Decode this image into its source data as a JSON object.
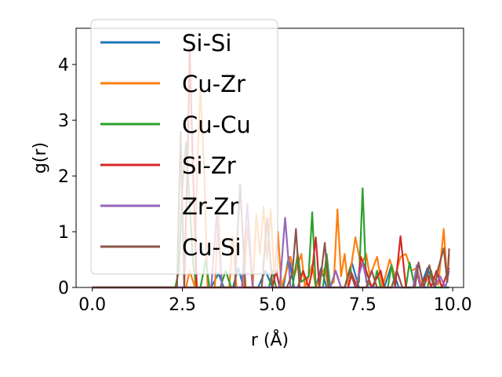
{
  "chart_data": {
    "type": "line",
    "xlabel": "r (Å)",
    "ylabel": "g(r)",
    "xlim": [
      -0.45,
      10.3
    ],
    "ylim": [
      0,
      4.65
    ],
    "x_ticks": [
      0.0,
      2.5,
      5.0,
      7.5,
      10.0
    ],
    "x_tick_labels": [
      "0.0",
      "2.5",
      "5.0",
      "7.5",
      "10.0"
    ],
    "y_ticks": [
      0,
      1,
      2,
      3,
      4
    ],
    "y_tick_labels": [
      "0",
      "1",
      "2",
      "3",
      "4"
    ],
    "grid": false,
    "legend_position": "upper-left",
    "series": [
      {
        "name": "Si-Si",
        "color": "#1f77b4",
        "points": [
          [
            0.0,
            0
          ],
          [
            3.3,
            0
          ],
          [
            3.5,
            0.25
          ],
          [
            3.65,
            0
          ],
          [
            3.9,
            0
          ],
          [
            4.05,
            0.35
          ],
          [
            4.2,
            0
          ],
          [
            4.6,
            0
          ],
          [
            4.8,
            0.3
          ],
          [
            5.0,
            0
          ],
          [
            5.3,
            0
          ],
          [
            5.45,
            0.55
          ],
          [
            5.6,
            0
          ],
          [
            6.2,
            0
          ],
          [
            6.35,
            0.35
          ],
          [
            6.5,
            0
          ],
          [
            7.0,
            0
          ],
          [
            7.2,
            0.45
          ],
          [
            7.4,
            0
          ],
          [
            8.1,
            0
          ],
          [
            8.3,
            0.4
          ],
          [
            8.5,
            0
          ],
          [
            9.1,
            0
          ],
          [
            9.3,
            0.35
          ],
          [
            9.5,
            0
          ],
          [
            9.9,
            0
          ]
        ]
      },
      {
        "name": "Cu-Zr",
        "color": "#ff7f0e",
        "points": [
          [
            0.0,
            0
          ],
          [
            2.6,
            0
          ],
          [
            2.7,
            0.3
          ],
          [
            2.85,
            0
          ],
          [
            2.9,
            2.0
          ],
          [
            3.0,
            3.55
          ],
          [
            3.1,
            2.2
          ],
          [
            3.2,
            0
          ],
          [
            3.4,
            0
          ],
          [
            3.5,
            1.3
          ],
          [
            3.6,
            0
          ],
          [
            3.8,
            0
          ],
          [
            3.9,
            0.9
          ],
          [
            4.0,
            0
          ],
          [
            4.2,
            0
          ],
          [
            4.3,
            1.1
          ],
          [
            4.45,
            0
          ],
          [
            4.55,
            1.3
          ],
          [
            4.65,
            0.6
          ],
          [
            4.75,
            1.45
          ],
          [
            4.85,
            0.5
          ],
          [
            4.95,
            1.4
          ],
          [
            5.05,
            0.2
          ],
          [
            5.15,
            1.0
          ],
          [
            5.25,
            0
          ],
          [
            5.5,
            0.55
          ],
          [
            5.6,
            0.2
          ],
          [
            5.8,
            0.6
          ],
          [
            5.9,
            0
          ],
          [
            6.1,
            0.4
          ],
          [
            6.2,
            0
          ],
          [
            6.45,
            0.35
          ],
          [
            6.55,
            0
          ],
          [
            6.7,
            0.1
          ],
          [
            6.8,
            1.4
          ],
          [
            6.9,
            0.2
          ],
          [
            7.0,
            0.6
          ],
          [
            7.1,
            0
          ],
          [
            7.3,
            0.9
          ],
          [
            7.45,
            0.4
          ],
          [
            7.6,
            0.6
          ],
          [
            7.7,
            0.2
          ],
          [
            7.9,
            0.55
          ],
          [
            8.05,
            0
          ],
          [
            8.25,
            0.5
          ],
          [
            8.4,
            0.2
          ],
          [
            8.55,
            0.55
          ],
          [
            8.7,
            0.6
          ],
          [
            8.85,
            0.3
          ],
          [
            9.0,
            0.35
          ],
          [
            9.15,
            0
          ],
          [
            9.3,
            0.15
          ],
          [
            9.45,
            0.2
          ],
          [
            9.6,
            0.05
          ],
          [
            9.75,
            1.05
          ],
          [
            9.85,
            0.1
          ],
          [
            9.9,
            0.6
          ]
        ]
      },
      {
        "name": "Cu-Cu",
        "color": "#2ca02c",
        "points": [
          [
            0.0,
            0
          ],
          [
            2.3,
            0
          ],
          [
            2.4,
            0.3
          ],
          [
            2.5,
            1.8
          ],
          [
            2.6,
            2.6
          ],
          [
            2.7,
            1.5
          ],
          [
            2.8,
            0.4
          ],
          [
            2.9,
            0
          ],
          [
            3.0,
            0
          ],
          [
            3.15,
            0.5
          ],
          [
            3.25,
            0
          ],
          [
            3.55,
            0
          ],
          [
            3.7,
            0.3
          ],
          [
            3.85,
            0
          ],
          [
            4.9,
            0
          ],
          [
            5.0,
            0.3
          ],
          [
            5.1,
            0
          ],
          [
            5.55,
            0
          ],
          [
            5.7,
            0.6
          ],
          [
            5.8,
            0.1
          ],
          [
            5.9,
            0.15
          ],
          [
            6.0,
            0.2
          ],
          [
            6.1,
            1.35
          ],
          [
            6.2,
            0
          ],
          [
            6.4,
            0
          ],
          [
            6.5,
            0.6
          ],
          [
            6.6,
            0
          ],
          [
            7.0,
            0
          ],
          [
            7.15,
            0.35
          ],
          [
            7.3,
            0
          ],
          [
            7.4,
            0.1
          ],
          [
            7.5,
            1.78
          ],
          [
            7.6,
            0.1
          ],
          [
            7.8,
            0
          ],
          [
            7.9,
            0.3
          ],
          [
            8.0,
            0
          ],
          [
            8.2,
            0
          ],
          [
            8.3,
            0.4
          ],
          [
            8.4,
            0
          ],
          [
            8.7,
            0
          ],
          [
            8.8,
            0.45
          ],
          [
            8.95,
            0
          ],
          [
            9.3,
            0
          ],
          [
            9.4,
            0.3
          ],
          [
            9.5,
            0
          ],
          [
            9.9,
            0
          ]
        ]
      },
      {
        "name": "Si-Zr",
        "color": "#d62728",
        "points": [
          [
            0.0,
            0
          ],
          [
            2.55,
            0
          ],
          [
            2.65,
            2.5
          ],
          [
            2.7,
            4.3
          ],
          [
            2.8,
            2.0
          ],
          [
            2.9,
            0
          ],
          [
            5.0,
            0
          ],
          [
            5.1,
            0.3
          ],
          [
            5.2,
            0
          ],
          [
            5.7,
            0
          ],
          [
            5.85,
            0.3
          ],
          [
            6.0,
            0
          ],
          [
            6.1,
            0.3
          ],
          [
            6.2,
            0.9
          ],
          [
            6.3,
            0
          ],
          [
            6.6,
            0
          ],
          [
            6.75,
            0.3
          ],
          [
            6.9,
            0
          ],
          [
            7.1,
            0
          ],
          [
            7.2,
            0.25
          ],
          [
            7.35,
            0
          ],
          [
            7.45,
            0.55
          ],
          [
            7.6,
            0.3
          ],
          [
            7.75,
            0
          ],
          [
            8.0,
            0.3
          ],
          [
            8.1,
            0
          ],
          [
            8.4,
            0
          ],
          [
            8.55,
            0.92
          ],
          [
            8.7,
            0
          ],
          [
            8.9,
            0
          ],
          [
            9.0,
            0.3
          ],
          [
            9.1,
            0
          ],
          [
            9.3,
            0.25
          ],
          [
            9.4,
            0
          ],
          [
            9.55,
            0.3
          ],
          [
            9.7,
            0
          ],
          [
            9.9,
            0.35
          ]
        ]
      },
      {
        "name": "Zr-Zr",
        "color": "#9467bd",
        "points": [
          [
            0.0,
            0
          ],
          [
            3.3,
            0
          ],
          [
            3.45,
            1.3
          ],
          [
            3.6,
            0
          ],
          [
            4.15,
            0
          ],
          [
            4.3,
            1.5
          ],
          [
            4.45,
            0
          ],
          [
            5.2,
            0
          ],
          [
            5.35,
            1.25
          ],
          [
            5.5,
            0
          ],
          [
            6.6,
            0
          ],
          [
            6.75,
            0.3
          ],
          [
            6.9,
            0
          ],
          [
            7.3,
            0
          ],
          [
            7.5,
            0.45
          ],
          [
            7.65,
            0
          ],
          [
            8.9,
            0
          ],
          [
            9.0,
            0.4
          ],
          [
            9.1,
            0
          ],
          [
            9.5,
            0
          ],
          [
            9.65,
            0.2
          ],
          [
            9.8,
            0
          ],
          [
            9.9,
            0.3
          ]
        ]
      },
      {
        "name": "Cu-Si",
        "color": "#8c564b",
        "points": [
          [
            0.0,
            0
          ],
          [
            2.35,
            0
          ],
          [
            2.45,
            2.8
          ],
          [
            2.55,
            0
          ],
          [
            3.95,
            0
          ],
          [
            4.1,
            1.85
          ],
          [
            4.25,
            0
          ],
          [
            4.7,
            0
          ],
          [
            4.85,
            1.25
          ],
          [
            5.0,
            0
          ],
          [
            5.4,
            0
          ],
          [
            5.55,
            0.25
          ],
          [
            5.65,
            1.05
          ],
          [
            5.75,
            0
          ],
          [
            6.3,
            0
          ],
          [
            6.45,
            0.8
          ],
          [
            6.55,
            0
          ],
          [
            7.0,
            0
          ],
          [
            7.15,
            0.3
          ],
          [
            7.3,
            0
          ],
          [
            7.6,
            0
          ],
          [
            7.75,
            0.3
          ],
          [
            7.9,
            0
          ],
          [
            8.3,
            0
          ],
          [
            8.45,
            0.3
          ],
          [
            8.6,
            0
          ],
          [
            8.95,
            0
          ],
          [
            9.05,
            0.45
          ],
          [
            9.2,
            0
          ],
          [
            9.35,
            0.4
          ],
          [
            9.5,
            0
          ],
          [
            9.6,
            0.35
          ],
          [
            9.75,
            0.7
          ],
          [
            9.85,
            0.1
          ],
          [
            9.9,
            0.7
          ]
        ]
      }
    ]
  }
}
